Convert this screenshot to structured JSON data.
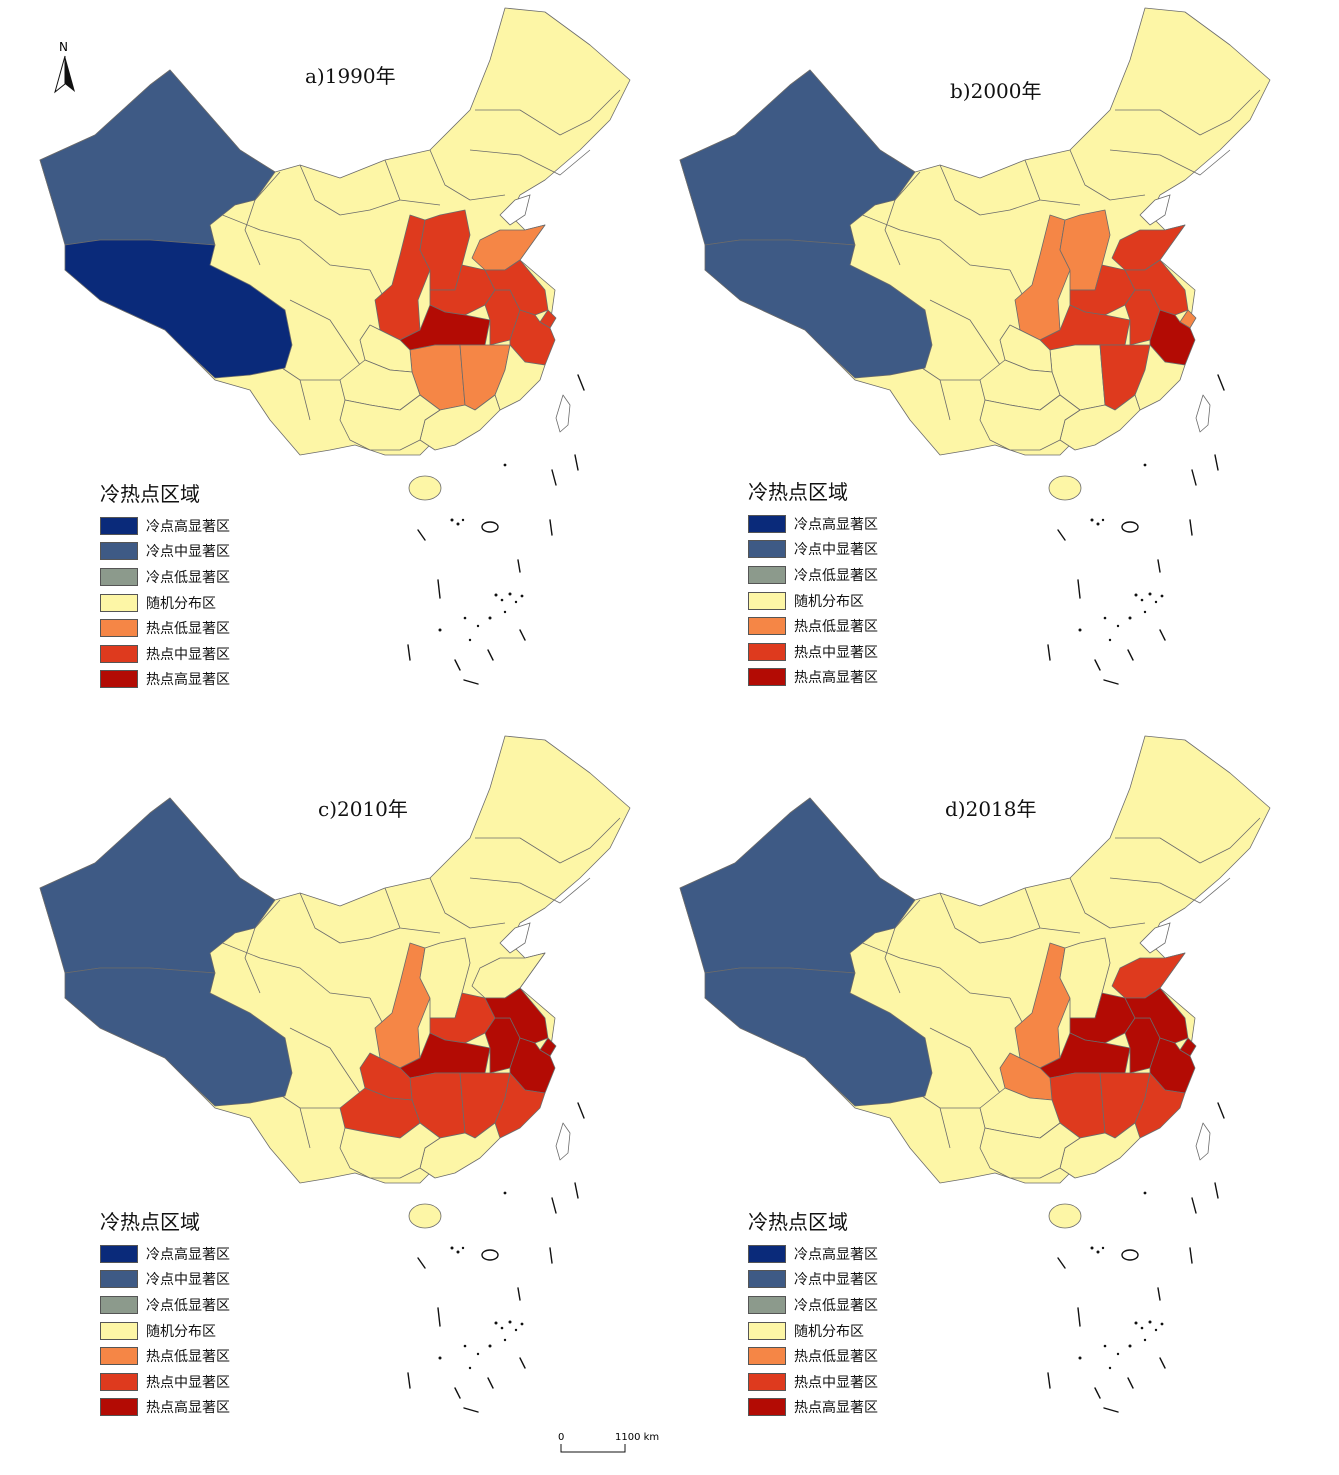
{
  "colors": {
    "cold_high": "#0a2a7a",
    "cold_mid": "#3e5a85",
    "cold_low": "#8c9a8c",
    "random": "#fdf6a6",
    "hot_low": "#f58646",
    "hot_mid": "#de3a1e",
    "hot_high": "#b30b04"
  },
  "legend": {
    "title": "冷热点区域",
    "items": [
      {
        "key": "cold_high",
        "label": "冷点高显著区"
      },
      {
        "key": "cold_mid",
        "label": "冷点中显著区"
      },
      {
        "key": "cold_low",
        "label": "冷点低显著区"
      },
      {
        "key": "random",
        "label": "随机分布区"
      },
      {
        "key": "hot_low",
        "label": "热点低显著区"
      },
      {
        "key": "hot_mid",
        "label": "热点中显著区"
      },
      {
        "key": "hot_high",
        "label": "热点高显著区"
      }
    ]
  },
  "panels": [
    {
      "id": "a",
      "title": "a)1990年",
      "regions": {
        "xinjiang": "cold_mid",
        "tibet": "cold_high",
        "shaanxi": "hot_mid",
        "shanxi": "hot_mid",
        "shandong": "hot_low",
        "henan": "hot_mid",
        "hubei": "hot_high",
        "anhui": "hot_mid",
        "jiangsu": "hot_mid",
        "shanghai": "hot_mid",
        "zhejiang": "hot_mid",
        "hunan": "hot_low",
        "jiangxi": "hot_low",
        "chongqing": "random",
        "guizhou": "random",
        "fujian": "random",
        "guangdong": "random",
        "guangxi": "random"
      }
    },
    {
      "id": "b",
      "title": "b)2000年",
      "regions": {
        "xinjiang": "cold_mid",
        "tibet": "cold_mid",
        "shaanxi": "hot_low",
        "shanxi": "hot_low",
        "shandong": "hot_mid",
        "henan": "hot_mid",
        "hubei": "hot_mid",
        "anhui": "hot_mid",
        "jiangsu": "hot_mid",
        "shanghai": "hot_low",
        "zhejiang": "hot_high",
        "hunan": "random",
        "jiangxi": "hot_mid",
        "chongqing": "random",
        "guizhou": "random",
        "fujian": "random",
        "guangdong": "random",
        "guangxi": "random"
      }
    },
    {
      "id": "c",
      "title": "c)2010年",
      "regions": {
        "xinjiang": "cold_mid",
        "tibet": "cold_mid",
        "shaanxi": "hot_low",
        "shanxi": "random",
        "shandong": "random",
        "henan": "hot_mid",
        "hubei": "hot_high",
        "anhui": "hot_high",
        "jiangsu": "hot_high",
        "shanghai": "hot_high",
        "zhejiang": "hot_high",
        "hunan": "hot_mid",
        "jiangxi": "hot_mid",
        "chongqing": "hot_mid",
        "guizhou": "hot_mid",
        "fujian": "hot_mid",
        "guangdong": "random",
        "guangxi": "random"
      }
    },
    {
      "id": "d",
      "title": "d)2018年",
      "regions": {
        "xinjiang": "cold_mid",
        "tibet": "cold_mid",
        "shaanxi": "hot_low",
        "shanxi": "random",
        "shandong": "hot_mid",
        "henan": "hot_high",
        "hubei": "hot_high",
        "anhui": "hot_high",
        "jiangsu": "hot_high",
        "shanghai": "hot_high",
        "zhejiang": "hot_high",
        "hunan": "hot_mid",
        "jiangxi": "hot_mid",
        "chongqing": "hot_low",
        "guizhou": "random",
        "fujian": "hot_mid",
        "guangdong": "random",
        "guangxi": "random"
      }
    }
  ],
  "north_label": "N",
  "scale": {
    "start": "0",
    "end": "1100 km"
  }
}
